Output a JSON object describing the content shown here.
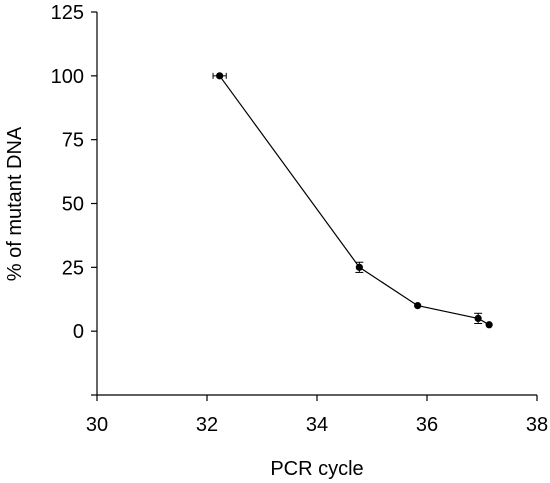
{
  "chart_data": {
    "type": "scatter",
    "title": "",
    "xlabel": "PCR cycle",
    "ylabel": "% of mutant DNA",
    "xlim": [
      30,
      38
    ],
    "ylim": [
      -25,
      125
    ],
    "x_ticks": [
      30,
      32,
      34,
      36,
      38
    ],
    "y_ticks": [
      0,
      25,
      50,
      75,
      100,
      125
    ],
    "grid": false,
    "legend": "none",
    "connected": true,
    "series": [
      {
        "points": [
          {
            "x": 32.23,
            "y": 100,
            "x_err": 0.12,
            "y_err": 0
          },
          {
            "x": 34.77,
            "y": 25,
            "x_err": 0,
            "y_err": 2
          },
          {
            "x": 35.83,
            "y": 10,
            "x_err": 0,
            "y_err": 0
          },
          {
            "x": 36.93,
            "y": 5,
            "x_err": 0,
            "y_err": 2
          },
          {
            "x": 37.13,
            "y": 2.5,
            "x_err": 0,
            "y_err": 0
          }
        ],
        "color": "#000000"
      }
    ]
  }
}
